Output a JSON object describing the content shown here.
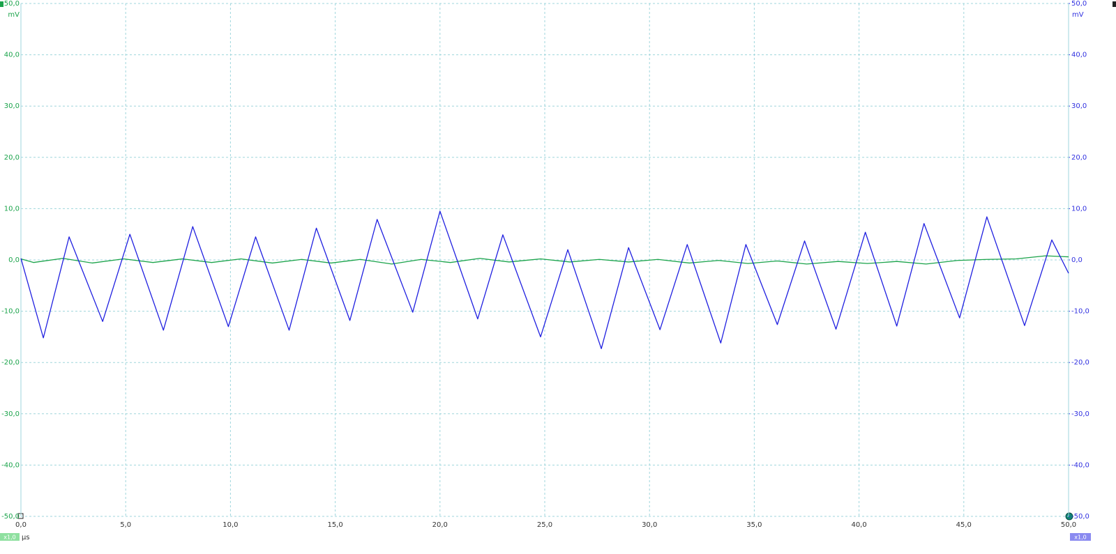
{
  "chart_data": {
    "type": "line",
    "xlim": [
      0,
      50
    ],
    "xticks": [
      {
        "value": 0,
        "label": "0,0"
      },
      {
        "value": 5,
        "label": "5,0"
      },
      {
        "value": 10,
        "label": "10,0"
      },
      {
        "value": 15,
        "label": "15,0"
      },
      {
        "value": 20,
        "label": "20,0"
      },
      {
        "value": 25,
        "label": "25,0"
      },
      {
        "value": 30,
        "label": "30,0"
      },
      {
        "value": 35,
        "label": "35,0"
      },
      {
        "value": 40,
        "label": "40,0"
      },
      {
        "value": 45,
        "label": "45,0"
      },
      {
        "value": 50,
        "label": "50,0"
      }
    ],
    "x_label": "µs",
    "ylim": [
      -50,
      50
    ],
    "yticks": [
      {
        "value": -50,
        "label": "-50,0"
      },
      {
        "value": -40,
        "label": "-40,0"
      },
      {
        "value": -30,
        "label": "-30,0"
      },
      {
        "value": -20,
        "label": "-20,0"
      },
      {
        "value": -10,
        "label": "-10,0"
      },
      {
        "value": 0,
        "label": "0,0"
      },
      {
        "value": 10,
        "label": "10,0"
      },
      {
        "value": 20,
        "label": "20,0"
      },
      {
        "value": 30,
        "label": "30,0"
      },
      {
        "value": 40,
        "label": "40,0"
      },
      {
        "value": 50,
        "label": "50,0"
      }
    ],
    "y_label": "mV",
    "y_scale_label": "x1,0",
    "y2lim": [
      -50,
      50
    ],
    "y2ticks": [
      {
        "value": -50,
        "label": "-50,0"
      },
      {
        "value": -40,
        "label": "-40,0"
      },
      {
        "value": -30,
        "label": "-30,0"
      },
      {
        "value": -20,
        "label": "-20,0"
      },
      {
        "value": -10,
        "label": "-10,0"
      },
      {
        "value": 0,
        "label": "0,0"
      },
      {
        "value": 10,
        "label": "10,0"
      },
      {
        "value": 20,
        "label": "20,0"
      },
      {
        "value": 30,
        "label": "30,0"
      },
      {
        "value": 40,
        "label": "40,0"
      },
      {
        "value": 50,
        "label": "50,0"
      }
    ],
    "y2_label": "mV",
    "y2_scale_label": "x1,0",
    "grid": true,
    "series": [
      {
        "color": "#1aa34a",
        "x": [
          0,
          0.6,
          2.0,
          3.4,
          4.9,
          6.3,
          7.7,
          9.1,
          10.5,
          12.0,
          13.4,
          14.8,
          16.2,
          17.7,
          19.1,
          20.5,
          21.9,
          23.3,
          24.8,
          26.2,
          27.6,
          29.0,
          30.4,
          31.9,
          33.3,
          34.7,
          36.1,
          37.5,
          39.0,
          40.4,
          41.8,
          43.2,
          44.7,
          46.1,
          47.5,
          48.9,
          50
        ],
        "values": [
          0.2,
          -0.5,
          0.3,
          -0.6,
          0.2,
          -0.5,
          0.2,
          -0.5,
          0.2,
          -0.6,
          0.1,
          -0.6,
          0.1,
          -0.8,
          0.1,
          -0.5,
          0.3,
          -0.4,
          0.2,
          -0.4,
          0.1,
          -0.4,
          0.1,
          -0.6,
          -0.1,
          -0.7,
          -0.2,
          -0.8,
          -0.3,
          -0.7,
          -0.3,
          -0.8,
          -0.1,
          0.1,
          0.2,
          0.8,
          0.6
        ]
      },
      {
        "color": "#1f1fe0",
        "axis": "y2",
        "x": [
          0,
          1.07,
          2.3,
          3.9,
          5.2,
          6.8,
          8.2,
          9.9,
          11.2,
          12.8,
          14.1,
          15.7,
          17,
          18.7,
          20,
          21.8,
          23,
          24.8,
          26.1,
          27.7,
          29,
          30.5,
          31.8,
          33.4,
          34.6,
          36.1,
          37.4,
          38.9,
          40.3,
          41.8,
          43.1,
          44.8,
          46.1,
          47.9,
          49.2,
          50
        ],
        "values": [
          0.3,
          -15.2,
          4.5,
          -12,
          5,
          -13.7,
          6.5,
          -13,
          4.5,
          -13.7,
          6.2,
          -11.8,
          7.9,
          -10.2,
          9.5,
          -11.5,
          4.9,
          -15,
          2,
          -17.3,
          2.4,
          -13.6,
          3,
          -16.2,
          3,
          -12.6,
          3.7,
          -13.5,
          5.4,
          -12.9,
          7.1,
          -11.3,
          8.4,
          -12.8,
          3.9,
          -2.6
        ]
      }
    ]
  }
}
